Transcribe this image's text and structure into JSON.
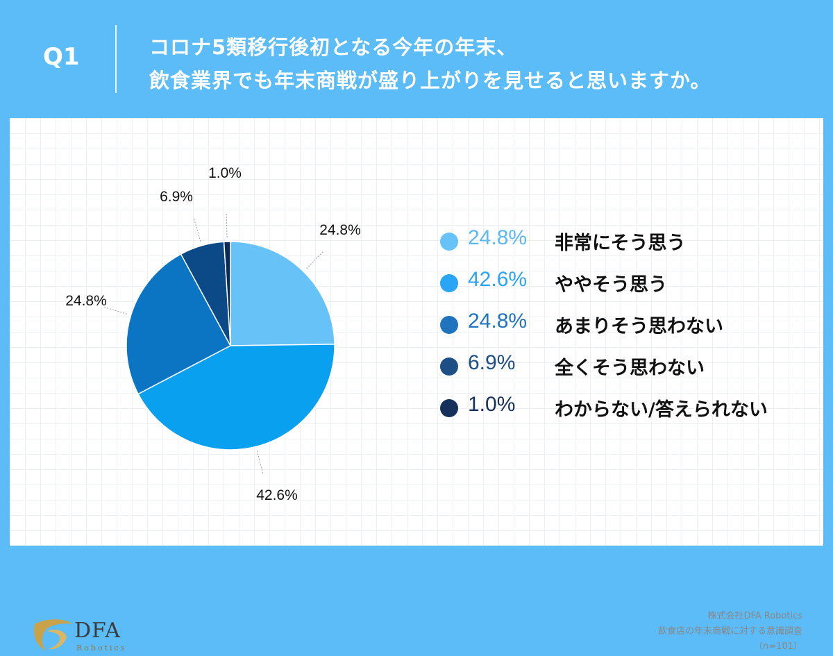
{
  "header": {
    "q_label": "Q1",
    "question_line1": "コロナ5類移行後初となる今年の年末、",
    "question_line2": "飲食業界でも年末商戦が盛り上がりを見せると思いますか。"
  },
  "chart_data": {
    "type": "pie",
    "slices": [
      {
        "label": "非常にそう思う",
        "value": 24.8,
        "display": "24.8%",
        "color": "#66c2f7"
      },
      {
        "label": "ややそう思う",
        "value": 42.6,
        "display": "42.6%",
        "color": "#0aa0f0"
      },
      {
        "label": "あまりそう思わない",
        "value": 24.8,
        "display": "24.8%",
        "color": "#0b75c3"
      },
      {
        "label": "全くそう思わない",
        "value": 6.9,
        "display": "6.9%",
        "color": "#0b4a86"
      },
      {
        "label": "わからない/答えられない",
        "value": 1.0,
        "display": "1.0%",
        "color": "#0a2b5a"
      }
    ],
    "legend_position": "right"
  },
  "legend": {
    "items": [
      {
        "pct": "24.8%",
        "label": "非常にそう思う",
        "color": "#66c2f7",
        "text_color": "#5cb8f2"
      },
      {
        "pct": "42.6%",
        "label": "ややそう思う",
        "color": "#2aa4f4",
        "text_color": "#2aa4f4"
      },
      {
        "pct": "24.8%",
        "label": "あまりそう思わない",
        "color": "#1f74bd",
        "text_color": "#1f74bd"
      },
      {
        "pct": "6.9%",
        "label": "全くそう思わない",
        "color": "#1d4f86",
        "text_color": "#1d4f86"
      },
      {
        "pct": "1.0%",
        "label": "わからない/答えられない",
        "color": "#15305a",
        "text_color": "#15305a"
      }
    ]
  },
  "logo": {
    "main": "DFA",
    "sub": "Robotics",
    "gold": "#c9a24a"
  },
  "source": {
    "line1": "株式会社DFA Robotics",
    "line2": "飲食店の年末商戦に対する意識調査",
    "line3": "（n=101）"
  }
}
